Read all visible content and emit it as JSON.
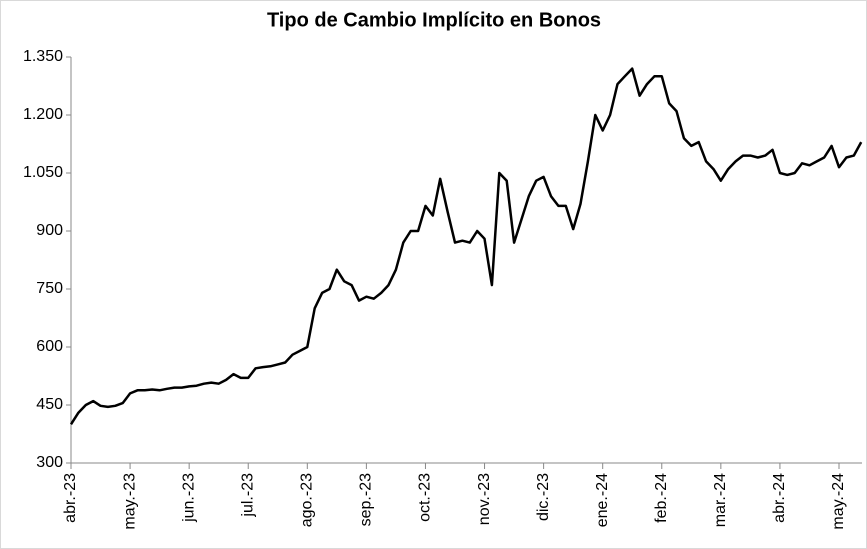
{
  "chart_data": {
    "type": "line",
    "title": "Tipo de Cambio Implícito en Bonos",
    "categories": [
      "abr.-23",
      null,
      null,
      null,
      null,
      null,
      null,
      null,
      "may.-23",
      null,
      null,
      null,
      null,
      null,
      null,
      null,
      "jun.-23",
      null,
      null,
      null,
      null,
      null,
      null,
      null,
      "jul.-23",
      null,
      null,
      null,
      null,
      null,
      null,
      null,
      "ago.-23",
      null,
      null,
      null,
      null,
      null,
      null,
      null,
      "sep.-23",
      null,
      null,
      null,
      null,
      null,
      null,
      null,
      "oct.-23",
      null,
      null,
      null,
      null,
      null,
      null,
      null,
      "nov.-23",
      null,
      null,
      null,
      null,
      null,
      null,
      null,
      "dic.-23",
      null,
      null,
      null,
      null,
      null,
      null,
      null,
      "ene.-24",
      null,
      null,
      null,
      null,
      null,
      null,
      null,
      "feb.-24",
      null,
      null,
      null,
      null,
      null,
      null,
      null,
      "mar.-24",
      null,
      null,
      null,
      null,
      null,
      null,
      null,
      "abr.-24",
      null,
      null,
      null,
      null,
      null,
      null,
      null,
      "may.-24",
      null,
      null,
      null
    ],
    "series": [
      {
        "color": "#000000",
        "values": [
          400,
          430,
          450,
          460,
          448,
          445,
          448,
          455,
          480,
          488,
          488,
          490,
          488,
          492,
          495,
          495,
          498,
          500,
          505,
          508,
          505,
          515,
          530,
          520,
          520,
          545,
          548,
          550,
          555,
          560,
          580,
          590,
          600,
          700,
          740,
          750,
          800,
          770,
          760,
          720,
          730,
          725,
          740,
          760,
          800,
          870,
          900,
          900,
          965,
          940,
          1035,
          950,
          870,
          875,
          870,
          900,
          880,
          760,
          1050,
          1030,
          870,
          930,
          990,
          1030,
          1040,
          990,
          965,
          965,
          905,
          970,
          1080,
          1200,
          1160,
          1200,
          1280,
          1300,
          1320,
          1250,
          1280,
          1300,
          1300,
          1230,
          1210,
          1140,
          1120,
          1130,
          1080,
          1060,
          1030,
          1060,
          1080,
          1095,
          1095,
          1090,
          1095,
          1110,
          1050,
          1045,
          1050,
          1075,
          1070,
          1080,
          1090,
          1120,
          1065,
          1090,
          1095,
          1130
        ]
      }
    ],
    "ylim": [
      300,
      1350
    ],
    "yticks": [
      300,
      450,
      600,
      750,
      900,
      {
        "value": 1050,
        "label": "1.050"
      },
      {
        "value": 1200,
        "label": "1.200"
      },
      {
        "value": 1350,
        "label": "1.350"
      }
    ],
    "grid": false
  }
}
